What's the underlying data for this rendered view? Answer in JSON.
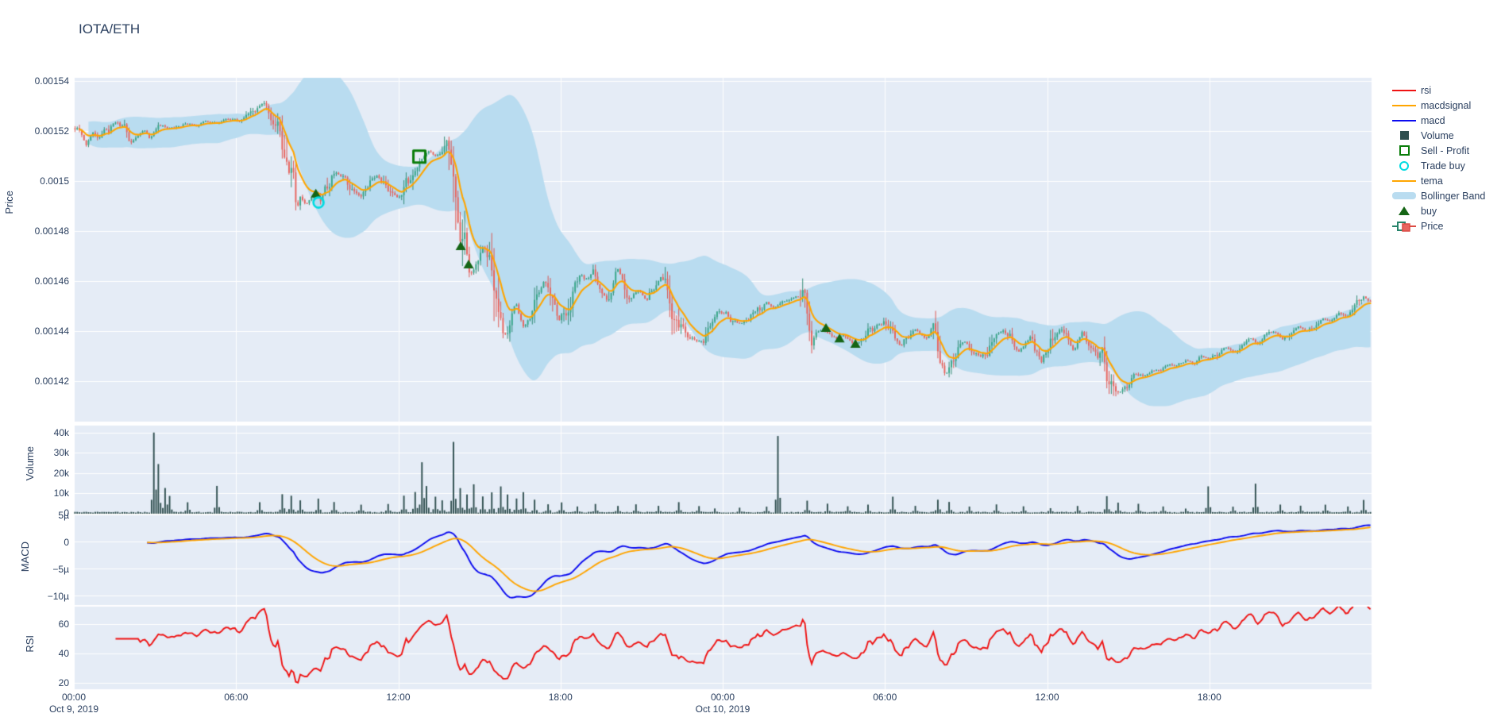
{
  "title": "IOTA/ETH",
  "colors": {
    "paper_bg": "#ffffff",
    "plot_bg": "#E5ECF6",
    "grid": "#ffffff",
    "text": "#2a3f5f",
    "rsi_line": "#ef1313",
    "macd_line": "#0b0bf0",
    "macdsignal_line": "#ffa500",
    "tema_line": "#ffa500",
    "volume_bar": "#2f4f4f",
    "bollinger_fill": "#b9dcf0",
    "candle_up_fill": "#38a88a",
    "candle_up_line": "#26836a",
    "candle_down_fill": "#e8655f",
    "candle_down_line": "#dc4a43",
    "buy_marker": "#156515",
    "sell_marker": "#0a7d0a",
    "trade_buy_marker": "#00dbe1"
  },
  "legend": {
    "items": [
      {
        "label": "rsi",
        "swatch": "line",
        "color": "#ef1313"
      },
      {
        "label": "macdsignal",
        "swatch": "line",
        "color": "#ffa500"
      },
      {
        "label": "macd",
        "swatch": "line",
        "color": "#0b0bf0"
      },
      {
        "label": "Volume",
        "swatch": "square",
        "color": "#2f4f4f"
      },
      {
        "label": "Sell - Profit",
        "swatch": "open-square",
        "color": "#0a7d0a"
      },
      {
        "label": "Trade buy",
        "swatch": "open-circle",
        "color": "#00dbe1"
      },
      {
        "label": "tema",
        "swatch": "line",
        "color": "#ffa500"
      },
      {
        "label": "Bollinger Band",
        "swatch": "band",
        "color": "#b9dcf0"
      },
      {
        "label": "buy",
        "swatch": "triangle",
        "color": "#156515"
      },
      {
        "label": "Price",
        "swatch": "candle",
        "color": "#38a88a"
      }
    ]
  },
  "axes": {
    "x": {
      "ticks": [
        {
          "h": 0,
          "label": "00:00"
        },
        {
          "h": 6,
          "label": "06:00"
        },
        {
          "h": 12,
          "label": "12:00"
        },
        {
          "h": 18,
          "label": "18:00"
        },
        {
          "h": 24,
          "label": "00:00"
        },
        {
          "h": 30,
          "label": "06:00"
        },
        {
          "h": 36,
          "label": "12:00"
        },
        {
          "h": 42,
          "label": "18:00"
        }
      ],
      "dates": [
        {
          "h": 0,
          "label": "Oct 9, 2019"
        },
        {
          "h": 24,
          "label": "Oct 10, 2019"
        }
      ]
    },
    "price": {
      "title": "Price",
      "ticks": [
        {
          "v": 0.00154,
          "label": "0.00154"
        },
        {
          "v": 0.00152,
          "label": "0.00152"
        },
        {
          "v": 0.0015,
          "label": "0.0015"
        },
        {
          "v": 0.00148,
          "label": "0.00148"
        },
        {
          "v": 0.00146,
          "label": "0.00146"
        },
        {
          "v": 0.00144,
          "label": "0.00144"
        },
        {
          "v": 0.00142,
          "label": "0.00142"
        }
      ]
    },
    "volume": {
      "title": "Volume",
      "ticks": [
        {
          "v": 40000,
          "label": "40k"
        },
        {
          "v": 30000,
          "label": "30k"
        },
        {
          "v": 20000,
          "label": "20k"
        },
        {
          "v": 10000,
          "label": "10k"
        },
        {
          "v": 0,
          "label": "0"
        }
      ]
    },
    "macd": {
      "title": "MACD",
      "ticks": [
        {
          "v": 5e-06,
          "label": "5µ"
        },
        {
          "v": 0,
          "label": "0"
        },
        {
          "v": -5e-06,
          "label": "−5µ"
        },
        {
          "v": -1e-05,
          "label": "−10µ"
        }
      ]
    },
    "rsi": {
      "title": "RSI",
      "ticks": [
        {
          "v": 60,
          "label": "60"
        },
        {
          "v": 40,
          "label": "40"
        },
        {
          "v": 20,
          "label": "20"
        }
      ]
    }
  },
  "chart_data": {
    "type": "candlestick-multi-panel",
    "pair": "IOTA/ETH",
    "x_start": "Oct 9, 2019 00:00",
    "x_range_hours": [
      0,
      48
    ],
    "candle_interval_minutes": 5,
    "panels": [
      "Price (candles, tema, Bollinger Band, trade markers)",
      "Volume",
      "MACD (macd, macdsignal)",
      "RSI"
    ],
    "price": {
      "ylim": [
        0.001404,
        0.0015455
      ],
      "close_anchors": [
        [
          0,
          0.001521
        ],
        [
          0.25,
          0.001519
        ],
        [
          0.45,
          0.0015145
        ],
        [
          0.7,
          0.001519
        ],
        [
          0.9,
          0.001516
        ],
        [
          1.1,
          0.001519
        ],
        [
          1.35,
          0.001522
        ],
        [
          1.6,
          0.001524
        ],
        [
          1.85,
          0.001521
        ],
        [
          2.1,
          0.001516
        ],
        [
          2.35,
          0.0015175
        ],
        [
          2.6,
          0.0015205
        ],
        [
          2.8,
          0.001517
        ],
        [
          3.0,
          0.0015195
        ],
        [
          3.3,
          0.001522
        ],
        [
          3.7,
          0.001521
        ],
        [
          4.1,
          0.001523
        ],
        [
          4.5,
          0.001522
        ],
        [
          4.9,
          0.001524
        ],
        [
          5.3,
          0.001523
        ],
        [
          5.7,
          0.001525
        ],
        [
          6.1,
          0.001524
        ],
        [
          6.45,
          0.001526
        ],
        [
          6.75,
          0.001529
        ],
        [
          7.0,
          0.001531
        ],
        [
          7.15,
          0.0015295
        ],
        [
          7.35,
          0.001526
        ],
        [
          7.55,
          0.0015235
        ],
        [
          7.75,
          0.0015195
        ],
        [
          7.95,
          0.00151
        ],
        [
          8.15,
          0.001497
        ],
        [
          8.35,
          0.0014925
        ],
        [
          8.6,
          0.001491
        ],
        [
          8.85,
          0.0014945
        ],
        [
          9.0,
          0.001495
        ],
        [
          9.1,
          0.0014905
        ],
        [
          9.35,
          0.0014975
        ],
        [
          9.7,
          0.001503
        ],
        [
          10.0,
          0.001501
        ],
        [
          10.3,
          0.001497
        ],
        [
          10.6,
          0.001494
        ],
        [
          10.9,
          0.001499
        ],
        [
          11.2,
          0.001502
        ],
        [
          11.5,
          0.0015
        ],
        [
          11.8,
          0.001494
        ],
        [
          12.0,
          0.001493
        ],
        [
          12.3,
          0.001499
        ],
        [
          12.6,
          0.001506
        ],
        [
          12.8,
          0.00151
        ],
        [
          13.1,
          0.001512
        ],
        [
          13.35,
          0.0015105
        ],
        [
          13.6,
          0.001512
        ],
        [
          13.8,
          0.001509
        ],
        [
          14.0,
          0.0015
        ],
        [
          14.15,
          0.001488
        ],
        [
          14.3,
          0.001478
        ],
        [
          14.45,
          0.001472
        ],
        [
          14.6,
          0.001466
        ],
        [
          14.75,
          0.001463
        ],
        [
          14.95,
          0.001469
        ],
        [
          15.15,
          0.001474
        ],
        [
          15.35,
          0.001472
        ],
        [
          15.55,
          0.00146
        ],
        [
          15.7,
          0.001443
        ],
        [
          15.85,
          0.001436
        ],
        [
          16.0,
          0.00144
        ],
        [
          16.2,
          0.001448
        ],
        [
          16.35,
          0.001452
        ],
        [
          16.5,
          0.001445
        ],
        [
          16.65,
          0.001441
        ],
        [
          16.9,
          0.001449
        ],
        [
          17.15,
          0.001455
        ],
        [
          17.4,
          0.00146
        ],
        [
          17.65,
          0.001453
        ],
        [
          17.95,
          0.001444
        ],
        [
          18.2,
          0.00145
        ],
        [
          18.5,
          0.001458
        ],
        [
          18.75,
          0.001462
        ],
        [
          19.0,
          0.001461
        ],
        [
          19.25,
          0.001463
        ],
        [
          19.5,
          0.001456
        ],
        [
          19.7,
          0.001453
        ],
        [
          19.9,
          0.001458
        ],
        [
          20.1,
          0.001465
        ],
        [
          20.35,
          0.001459
        ],
        [
          20.6,
          0.001453
        ],
        [
          20.9,
          0.001457
        ],
        [
          21.2,
          0.001452
        ],
        [
          21.45,
          0.001457
        ],
        [
          21.7,
          0.001462
        ],
        [
          22.0,
          0.001455
        ],
        [
          22.2,
          0.001446
        ],
        [
          22.5,
          0.00144
        ],
        [
          22.8,
          0.001438
        ],
        [
          23.1,
          0.001436
        ],
        [
          23.35,
          0.001437
        ],
        [
          23.6,
          0.001444
        ],
        [
          23.85,
          0.001447
        ],
        [
          24.1,
          0.001447
        ],
        [
          24.4,
          0.001444
        ],
        [
          24.7,
          0.001443
        ],
        [
          25.0,
          0.001445
        ],
        [
          25.3,
          0.001448
        ],
        [
          25.6,
          0.001452
        ],
        [
          25.9,
          0.001449
        ],
        [
          26.2,
          0.001452
        ],
        [
          26.5,
          0.001453
        ],
        [
          26.8,
          0.001454
        ],
        [
          27.0,
          0.001453
        ],
        [
          27.15,
          0.001444
        ],
        [
          27.3,
          0.001436
        ],
        [
          27.5,
          0.00144
        ],
        [
          27.7,
          0.001441
        ],
        [
          27.9,
          0.001438
        ],
        [
          28.2,
          0.001437
        ],
        [
          28.5,
          0.001439
        ],
        [
          28.8,
          0.001435
        ],
        [
          29.1,
          0.001436
        ],
        [
          29.45,
          0.001441
        ],
        [
          29.75,
          0.001443
        ],
        [
          30.05,
          0.001442
        ],
        [
          30.35,
          0.001436
        ],
        [
          30.6,
          0.001434
        ],
        [
          30.85,
          0.001437
        ],
        [
          31.1,
          0.001441
        ],
        [
          31.3,
          0.001439
        ],
        [
          31.5,
          0.001437
        ],
        [
          31.75,
          0.001441
        ],
        [
          31.95,
          0.001434
        ],
        [
          32.1,
          0.001424
        ],
        [
          32.35,
          0.001423
        ],
        [
          32.6,
          0.001431
        ],
        [
          32.9,
          0.001436
        ],
        [
          33.2,
          0.001434
        ],
        [
          33.5,
          0.001429
        ],
        [
          33.8,
          0.001433
        ],
        [
          34.1,
          0.001439
        ],
        [
          34.4,
          0.00144
        ],
        [
          34.7,
          0.001436
        ],
        [
          34.95,
          0.001432
        ],
        [
          35.2,
          0.001435
        ],
        [
          35.45,
          0.001437
        ],
        [
          35.65,
          0.00143
        ],
        [
          35.8,
          0.001427
        ],
        [
          36.0,
          0.001433
        ],
        [
          36.25,
          0.001438
        ],
        [
          36.5,
          0.001441
        ],
        [
          36.75,
          0.001436
        ],
        [
          37.0,
          0.001432
        ],
        [
          37.3,
          0.00144
        ],
        [
          37.6,
          0.001434
        ],
        [
          37.85,
          0.00143
        ],
        [
          38.0,
          0.001434
        ],
        [
          38.2,
          0.001425
        ],
        [
          38.45,
          0.001418
        ],
        [
          38.7,
          0.001416
        ],
        [
          39.0,
          0.001419
        ],
        [
          39.3,
          0.001423
        ],
        [
          39.6,
          0.001422
        ],
        [
          39.9,
          0.001425
        ],
        [
          40.2,
          0.001424
        ],
        [
          40.5,
          0.001427
        ],
        [
          40.8,
          0.001426
        ],
        [
          41.1,
          0.001428
        ],
        [
          41.4,
          0.001427
        ],
        [
          41.7,
          0.00143
        ],
        [
          42.0,
          0.001429
        ],
        [
          42.3,
          0.001431
        ],
        [
          42.6,
          0.001433
        ],
        [
          42.9,
          0.001432
        ],
        [
          43.2,
          0.001435
        ],
        [
          43.5,
          0.001437
        ],
        [
          43.8,
          0.001435
        ],
        [
          44.1,
          0.001438
        ],
        [
          44.4,
          0.00144
        ],
        [
          44.7,
          0.001437
        ],
        [
          45.0,
          0.00144
        ],
        [
          45.3,
          0.001442
        ],
        [
          45.6,
          0.00144
        ],
        [
          45.9,
          0.001443
        ],
        [
          46.2,
          0.001445
        ],
        [
          46.5,
          0.001444
        ],
        [
          46.8,
          0.001447
        ],
        [
          47.1,
          0.001446
        ],
        [
          47.4,
          0.001449
        ],
        [
          47.7,
          0.001453
        ],
        [
          48.0,
          0.001452
        ]
      ],
      "tema": {
        "ema_span_bars": 10
      },
      "bollinger": {
        "window_bars": 40,
        "std_mult": 2.05
      },
      "markers": {
        "buy_triangles": [
          [
            8.95,
            0.001495
          ],
          [
            14.31,
            0.001474
          ],
          [
            14.6,
            0.0014667
          ],
          [
            27.82,
            0.0014413
          ],
          [
            28.32,
            0.0014371
          ],
          [
            28.91,
            0.0014349
          ]
        ],
        "sell_profit_squares": [
          [
            12.78,
            0.0015098
          ]
        ],
        "trade_buy_circles": [
          [
            9.05,
            0.0014914
          ]
        ]
      }
    },
    "volume": {
      "ylim": [
        0,
        43600
      ],
      "baseline_k_range": [
        0.12,
        0.65
      ],
      "spikes_k": [
        [
          2.94,
          40
        ],
        [
          3.15,
          24
        ],
        [
          3.35,
          12
        ],
        [
          3.55,
          8
        ],
        [
          4.2,
          5
        ],
        [
          5.3,
          13
        ],
        [
          6.9,
          5
        ],
        [
          7.7,
          9
        ],
        [
          8.05,
          8
        ],
        [
          8.35,
          6
        ],
        [
          9.0,
          7
        ],
        [
          9.6,
          5
        ],
        [
          10.6,
          4
        ],
        [
          11.6,
          4
        ],
        [
          12.2,
          8
        ],
        [
          12.6,
          10
        ],
        [
          12.85,
          25
        ],
        [
          13.05,
          13
        ],
        [
          13.35,
          8
        ],
        [
          13.65,
          6
        ],
        [
          14.05,
          35
        ],
        [
          14.25,
          12
        ],
        [
          14.55,
          9
        ],
        [
          14.8,
          14
        ],
        [
          15.1,
          8
        ],
        [
          15.45,
          10
        ],
        [
          15.75,
          13
        ],
        [
          16.05,
          9
        ],
        [
          16.35,
          7
        ],
        [
          16.65,
          10
        ],
        [
          17.05,
          6
        ],
        [
          17.55,
          4
        ],
        [
          18.05,
          5
        ],
        [
          18.6,
          3
        ],
        [
          19.3,
          4
        ],
        [
          20.1,
          3
        ],
        [
          20.8,
          4
        ],
        [
          21.6,
          3
        ],
        [
          22.35,
          5
        ],
        [
          23.1,
          3
        ],
        [
          23.7,
          2
        ],
        [
          24.6,
          2
        ],
        [
          25.6,
          3
        ],
        [
          26.05,
          38
        ],
        [
          27.15,
          6
        ],
        [
          27.9,
          4
        ],
        [
          28.6,
          3
        ],
        [
          29.4,
          4
        ],
        [
          30.3,
          8
        ],
        [
          31.1,
          3
        ],
        [
          31.95,
          6
        ],
        [
          32.35,
          5
        ],
        [
          33.1,
          3
        ],
        [
          34.1,
          4
        ],
        [
          35.15,
          3
        ],
        [
          36.1,
          2
        ],
        [
          37.1,
          3
        ],
        [
          38.2,
          8
        ],
        [
          38.6,
          5
        ],
        [
          39.4,
          4
        ],
        [
          40.3,
          3
        ],
        [
          41.1,
          2
        ],
        [
          41.95,
          13
        ],
        [
          42.9,
          3
        ],
        [
          43.7,
          14
        ],
        [
          44.6,
          4
        ],
        [
          45.4,
          3
        ],
        [
          46.3,
          4
        ],
        [
          47.1,
          3
        ],
        [
          47.7,
          6
        ]
      ]
    },
    "macd": {
      "ylim": [
        -1.18e-05,
        4.85e-06
      ],
      "derivation": "macd = EMA24(close) - EMA52(close), signal = EMA18(macd), scaled so min = -10.4e-6",
      "observed_min": -1.04e-05,
      "observed_end": 4.2e-06
    },
    "rsi": {
      "ylim": [
        15.8,
        71.8
      ],
      "period_bars": 28,
      "observed_range": [
        20,
        72
      ]
    }
  },
  "layout_hints": {
    "grid": true,
    "legend_position": "right-top",
    "shared_x": true
  }
}
